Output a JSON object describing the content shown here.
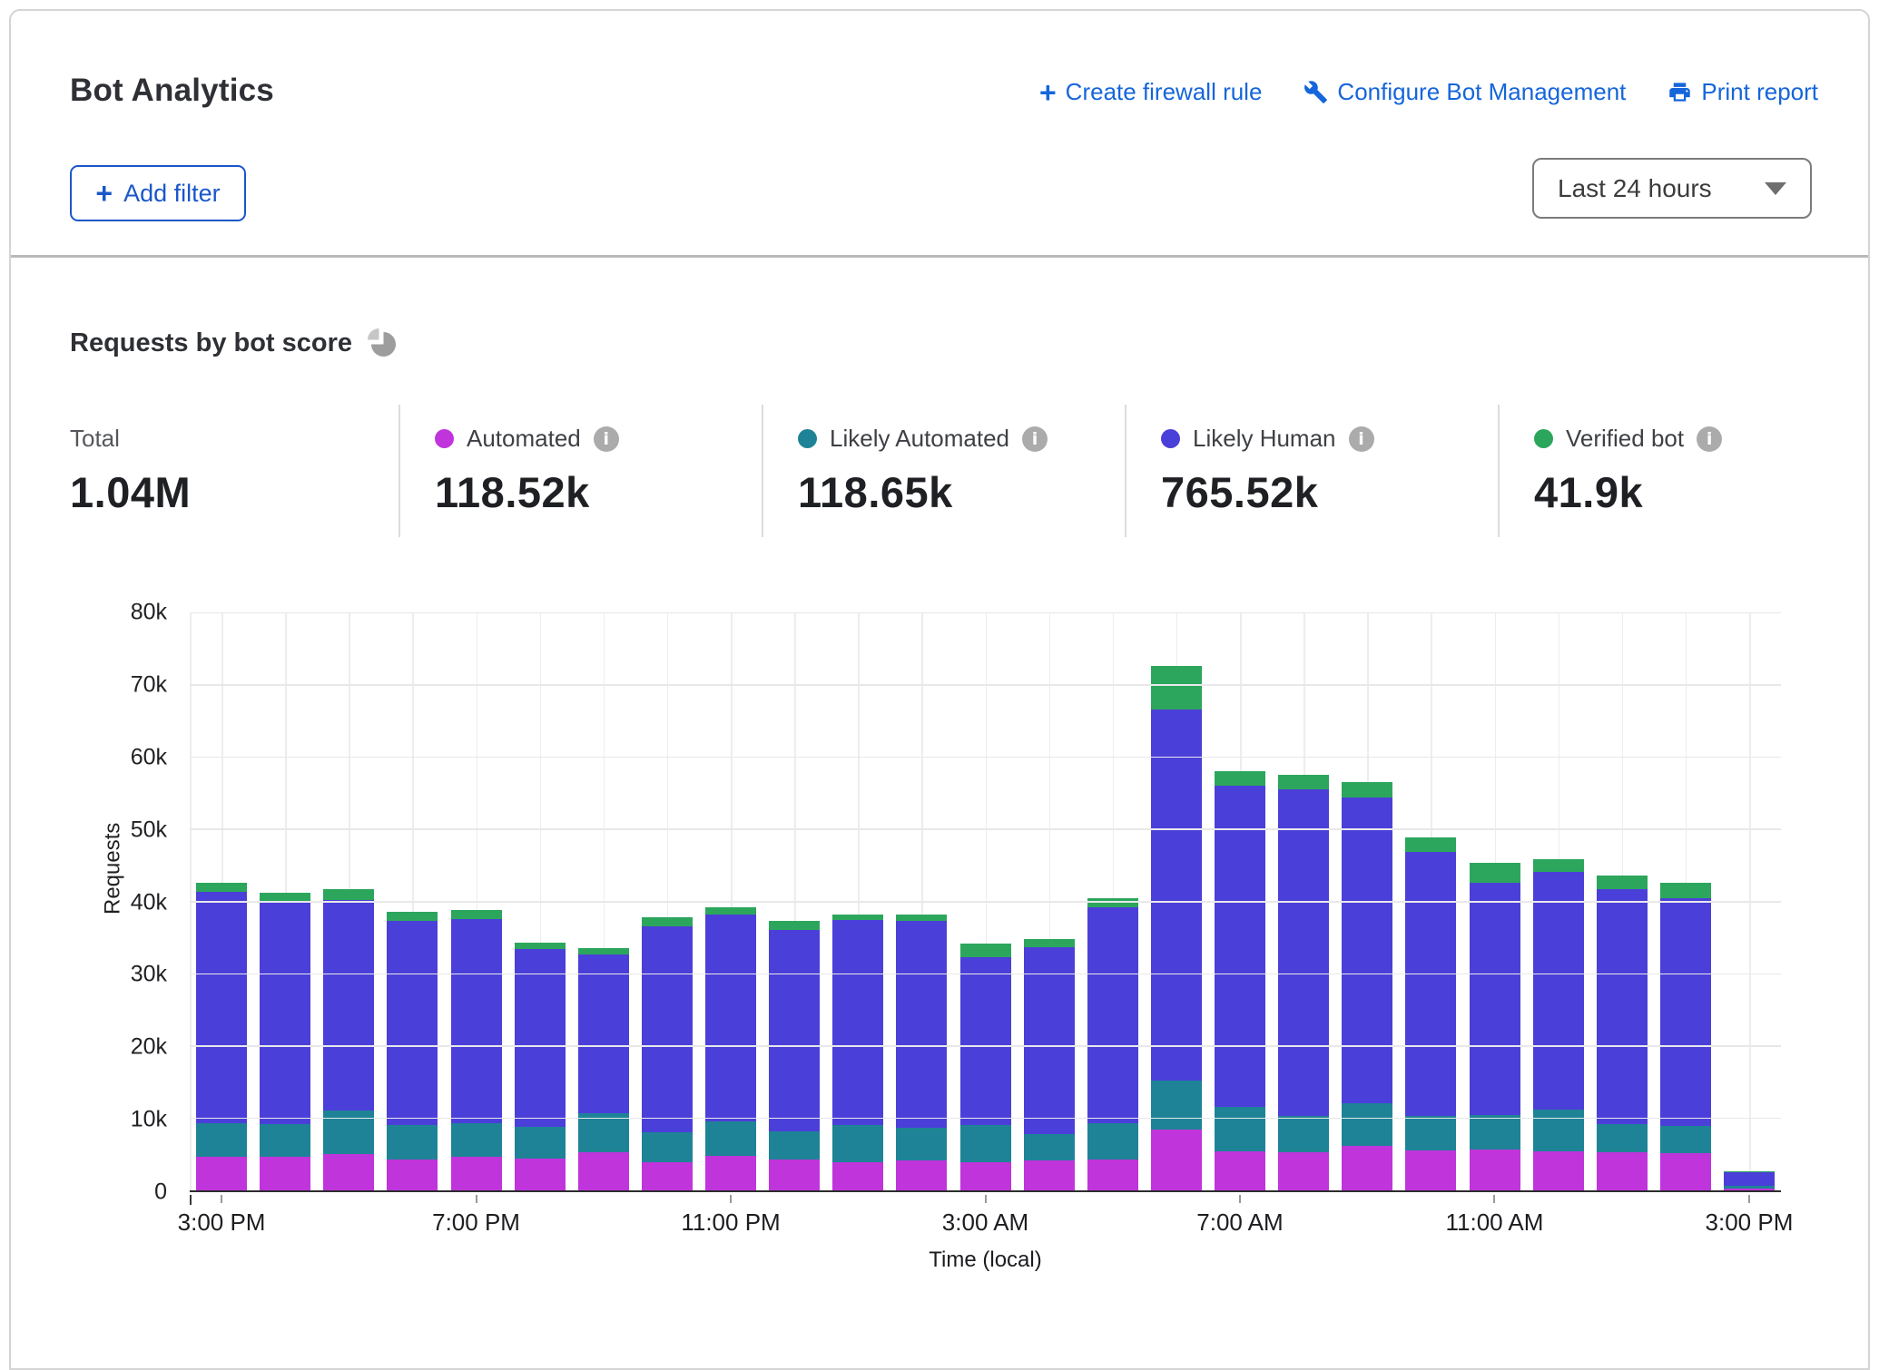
{
  "header": {
    "title": "Bot Analytics",
    "actions": [
      {
        "name": "create-firewall-rule-link",
        "icon": "plus-icon",
        "label": "Create firewall rule"
      },
      {
        "name": "configure-bot-management-link",
        "icon": "wrench-icon",
        "label": "Configure Bot Management"
      },
      {
        "name": "print-report-link",
        "icon": "printer-icon",
        "label": "Print report"
      }
    ],
    "add_filter_label": "Add filter",
    "time_range_value": "Last 24 hours"
  },
  "section": {
    "title": "Requests by bot score"
  },
  "colors": {
    "automated": "#c034dc",
    "likely_automated": "#1e8396",
    "likely_human": "#4b3fd9",
    "verified_bot": "#2ca65c",
    "link_blue": "#1565db"
  },
  "stats": [
    {
      "label": "Total",
      "value": "1.04M",
      "dot": null,
      "info": false
    },
    {
      "label": "Automated",
      "value": "118.52k",
      "dot": "#c034dc",
      "info": true
    },
    {
      "label": "Likely Automated",
      "value": "118.65k",
      "dot": "#1e8396",
      "info": true
    },
    {
      "label": "Likely Human",
      "value": "765.52k",
      "dot": "#4b3fd9",
      "info": true
    },
    {
      "label": "Verified bot",
      "value": "41.9k",
      "dot": "#2ca65c",
      "info": true
    }
  ],
  "chart_data": {
    "type": "bar",
    "stacked": true,
    "title": "Requests by bot score",
    "xlabel": "Time (local)",
    "ylabel": "Requests",
    "ylim": [
      0,
      80000
    ],
    "grid": true,
    "y_ticks": [
      {
        "value": 0,
        "label": "0"
      },
      {
        "value": 10000,
        "label": "10k"
      },
      {
        "value": 20000,
        "label": "20k"
      },
      {
        "value": 30000,
        "label": "30k"
      },
      {
        "value": 40000,
        "label": "40k"
      },
      {
        "value": 50000,
        "label": "50k"
      },
      {
        "value": 60000,
        "label": "60k"
      },
      {
        "value": 70000,
        "label": "70k"
      },
      {
        "value": 80000,
        "label": "80k"
      }
    ],
    "categories": [
      "3:00 PM",
      "4:00 PM",
      "5:00 PM",
      "6:00 PM",
      "7:00 PM",
      "8:00 PM",
      "9:00 PM",
      "10:00 PM",
      "11:00 PM",
      "12:00 AM",
      "1:00 AM",
      "2:00 AM",
      "3:00 AM",
      "4:00 AM",
      "5:00 AM",
      "6:00 AM",
      "7:00 AM",
      "8:00 AM",
      "9:00 AM",
      "10:00 AM",
      "11:00 AM",
      "12:00 PM",
      "1:00 PM",
      "2:00 PM",
      "3:00 PM"
    ],
    "x_tick_labels": [
      "3:00 PM",
      "7:00 PM",
      "11:00 PM",
      "3:00 AM",
      "7:00 AM",
      "11:00 AM",
      "3:00 PM"
    ],
    "x_tick_indices": [
      0,
      4,
      8,
      12,
      16,
      20,
      24
    ],
    "series": [
      {
        "name": "Automated",
        "color": "#c034dc",
        "values": [
          4700,
          4600,
          5000,
          4300,
          4600,
          4400,
          5300,
          3900,
          4800,
          4300,
          3900,
          4100,
          3900,
          4200,
          4300,
          8400,
          5400,
          5300,
          6200,
          5500,
          5600,
          5400,
          5300,
          5100,
          300
        ]
      },
      {
        "name": "Likely Automated",
        "color": "#1e8396",
        "values": [
          4600,
          4600,
          6000,
          4700,
          4700,
          4400,
          5400,
          4100,
          4700,
          3900,
          5100,
          4600,
          5200,
          3600,
          5000,
          6800,
          6100,
          5000,
          5900,
          4800,
          4800,
          5800,
          3900,
          3800,
          300
        ]
      },
      {
        "name": "Likely Human",
        "color": "#4b3fd9",
        "values": [
          32000,
          30700,
          29200,
          28300,
          28200,
          24600,
          21900,
          28600,
          28700,
          27900,
          28400,
          28600,
          23200,
          25800,
          29900,
          51400,
          44500,
          45200,
          42300,
          36500,
          32200,
          32900,
          32500,
          31500,
          1900
        ]
      },
      {
        "name": "Verified bot",
        "color": "#2ca65c",
        "values": [
          1300,
          1300,
          1500,
          1200,
          1300,
          900,
          1000,
          1200,
          1000,
          1200,
          800,
          900,
          1900,
          1200,
          1300,
          6000,
          2000,
          2000,
          2100,
          2100,
          2800,
          1700,
          1900,
          2200,
          100
        ]
      }
    ],
    "legend_position": "top"
  }
}
